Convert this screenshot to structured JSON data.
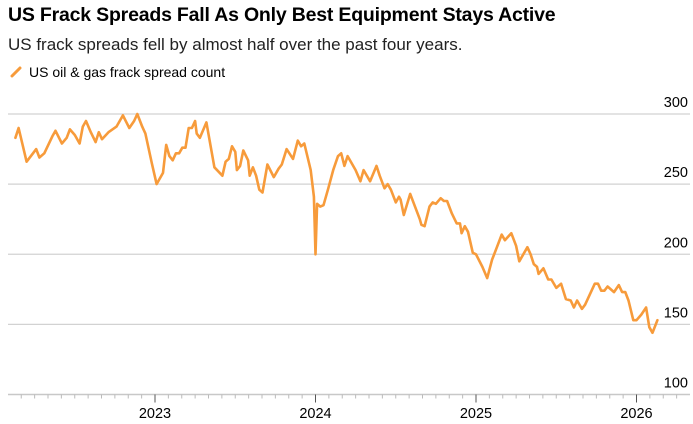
{
  "title": "US Frack Spreads Fall As Only Best Equipment Stays Active",
  "subtitle": "US frack spreads fell by almost half over the past four years.",
  "chart_data": {
    "type": "line",
    "title": "US Frack Spreads Fall As Only Best Equipment Stays Active",
    "subtitle": "US frack spreads fell by almost half over the past four years.",
    "xlabel": "",
    "ylabel": "",
    "x_unit": "decimal year",
    "xlim": [
      2022.08,
      2026.33
    ],
    "ylim": [
      100,
      300
    ],
    "yticks": [
      100,
      150,
      200,
      250,
      300
    ],
    "ytick_labels": [
      "100",
      "150",
      "200",
      "250",
      "300"
    ],
    "xticks": [
      2023,
      2024,
      2025,
      2026
    ],
    "xtick_labels": [
      "2023",
      "2024",
      "2025",
      "2026"
    ],
    "y_axis_position": "right",
    "grid": "horizontal",
    "legend_placement": "top-left",
    "series": [
      {
        "name": "US oil & gas frack spread count",
        "color": "#F79B3B",
        "x": [
          2022.13,
          2022.15,
          2022.2,
          2022.24,
          2022.26,
          2022.28,
          2022.31,
          2022.36,
          2022.38,
          2022.42,
          2022.45,
          2022.47,
          2022.5,
          2022.53,
          2022.55,
          2022.57,
          2022.6,
          2022.63,
          2022.65,
          2022.67,
          2022.71,
          2022.76,
          2022.8,
          2022.84,
          2022.87,
          2022.89,
          2022.92,
          2022.94,
          2022.98,
          2023.01,
          2023.05,
          2023.07,
          2023.09,
          2023.11,
          2023.13,
          2023.15,
          2023.17,
          2023.19,
          2023.21,
          2023.23,
          2023.25,
          2023.26,
          2023.28,
          2023.32,
          2023.37,
          2023.42,
          2023.44,
          2023.46,
          2023.48,
          2023.5,
          2023.51,
          2023.53,
          2023.55,
          2023.58,
          2023.59,
          2023.61,
          2023.63,
          2023.65,
          2023.67,
          2023.7,
          2023.74,
          2023.77,
          2023.79,
          2023.82,
          2023.86,
          2023.89,
          2023.91,
          2023.93,
          2023.97,
          2023.99,
          2024.0,
          2024.01,
          2024.03,
          2024.05,
          2024.08,
          2024.11,
          2024.14,
          2024.16,
          2024.18,
          2024.2,
          2024.25,
          2024.28,
          2024.3,
          2024.34,
          2024.38,
          2024.4,
          2024.43,
          2024.45,
          2024.47,
          2024.5,
          2024.52,
          2024.53,
          2024.55,
          2024.59,
          2024.62,
          2024.65,
          2024.66,
          2024.68,
          2024.71,
          2024.73,
          2024.75,
          2024.78,
          2024.8,
          2024.82,
          2024.85,
          2024.88,
          2024.9,
          2024.91,
          2024.93,
          2024.95,
          2024.98,
          2025.0,
          2025.04,
          2025.07,
          2025.1,
          2025.13,
          2025.16,
          2025.18,
          2025.22,
          2025.25,
          2025.27,
          2025.32,
          2025.34,
          2025.36,
          2025.38,
          2025.39,
          2025.42,
          2025.45,
          2025.47,
          2025.5,
          2025.53,
          2025.56,
          2025.59,
          2025.61,
          2025.63,
          2025.66,
          2025.68,
          2025.74,
          2025.76,
          2025.78,
          2025.8,
          2025.82,
          2025.86,
          2025.89,
          2025.91,
          2025.93,
          2025.95,
          2025.98,
          2026.0,
          2026.03,
          2026.06,
          2026.08,
          2026.1,
          2026.13
        ],
        "y": [
          283,
          290,
          266,
          272,
          275,
          269,
          272,
          284,
          288,
          279,
          283,
          289,
          285,
          279,
          291,
          295,
          287,
          280,
          287,
          282,
          287,
          291,
          299,
          290,
          295,
          300,
          291,
          286,
          265,
          250,
          258,
          278,
          270,
          267,
          272,
          272,
          276,
          276,
          290,
          290,
          295,
          286,
          283,
          294,
          262,
          256,
          266,
          268,
          277,
          273,
          260,
          263,
          274,
          267,
          256,
          262,
          256,
          246,
          244,
          264,
          255,
          261,
          264,
          275,
          268,
          281,
          277,
          279,
          260,
          241,
          200,
          236,
          234,
          235,
          247,
          260,
          270,
          272,
          263,
          270,
          260,
          252,
          260,
          252,
          263,
          256,
          247,
          250,
          246,
          237,
          241,
          239,
          228,
          243,
          234,
          225,
          221,
          220,
          234,
          237,
          236,
          240,
          238,
          238,
          229,
          222,
          222,
          215,
          220,
          216,
          201,
          200,
          191,
          183,
          196,
          205,
          214,
          210,
          215,
          206,
          195,
          205,
          200,
          193,
          191,
          186,
          190,
          182,
          182,
          176,
          179,
          168,
          167,
          162,
          167,
          161,
          164,
          179,
          179,
          174,
          174,
          177,
          173,
          178,
          173,
          173,
          167,
          153,
          153,
          157,
          162,
          148,
          144,
          153
        ]
      }
    ]
  }
}
